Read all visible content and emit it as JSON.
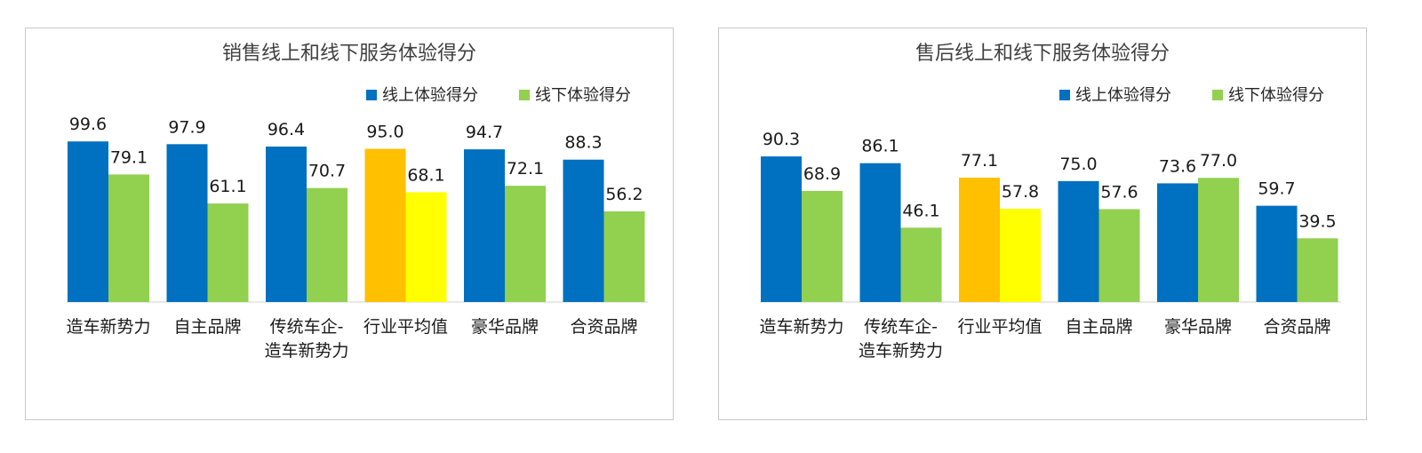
{
  "chart_data": [
    {
      "type": "bar",
      "title": "销售线上和线下服务体验得分",
      "categories": [
        [
          "造车新势力"
        ],
        [
          "自主品牌"
        ],
        [
          "传统车企-",
          "造车新势力"
        ],
        [
          "行业平均值"
        ],
        [
          "豪华品牌"
        ],
        [
          "合资品牌"
        ]
      ],
      "series": [
        {
          "name": "线上体验得分",
          "color": "#0070c0",
          "values": [
            99.6,
            97.9,
            96.4,
            95.0,
            94.7,
            88.3
          ]
        },
        {
          "name": "线下体验得分",
          "color": "#92d050",
          "values": [
            79.1,
            61.1,
            70.7,
            68.1,
            72.1,
            56.2
          ]
        }
      ],
      "highlight": {
        "category_index": 3,
        "colors": [
          "#ffc000",
          "#ffff00"
        ]
      },
      "value_labels": [
        [
          "99.6",
          "97.9",
          "96.4",
          "95.0",
          "94.7",
          "88.3"
        ],
        [
          "79.1",
          "61.1",
          "70.7",
          "68.1",
          "72.1",
          "56.2"
        ]
      ],
      "legend_position": "top-right",
      "grid": false
    },
    {
      "type": "bar",
      "title": "售后线上和线下服务体验得分",
      "categories": [
        [
          "造车新势力"
        ],
        [
          "传统车企-",
          "造车新势力"
        ],
        [
          "行业平均值"
        ],
        [
          "自主品牌"
        ],
        [
          "豪华品牌"
        ],
        [
          "合资品牌"
        ]
      ],
      "series": [
        {
          "name": "线上体验得分",
          "color": "#0070c0",
          "values": [
            90.3,
            86.1,
            77.1,
            75.0,
            73.6,
            59.7
          ]
        },
        {
          "name": "线下体验得分",
          "color": "#92d050",
          "values": [
            68.9,
            46.1,
            57.8,
            57.6,
            77.0,
            39.5
          ]
        }
      ],
      "highlight": {
        "category_index": 2,
        "colors": [
          "#ffc000",
          "#ffff00"
        ]
      },
      "value_labels": [
        [
          "90.3",
          "86.1",
          "77.1",
          "75.0",
          "73.6",
          "59.7"
        ],
        [
          "68.9",
          "46.1",
          "57.8",
          "57.6",
          "77.0",
          "39.5"
        ]
      ],
      "legend_position": "top-right",
      "grid": false
    }
  ]
}
